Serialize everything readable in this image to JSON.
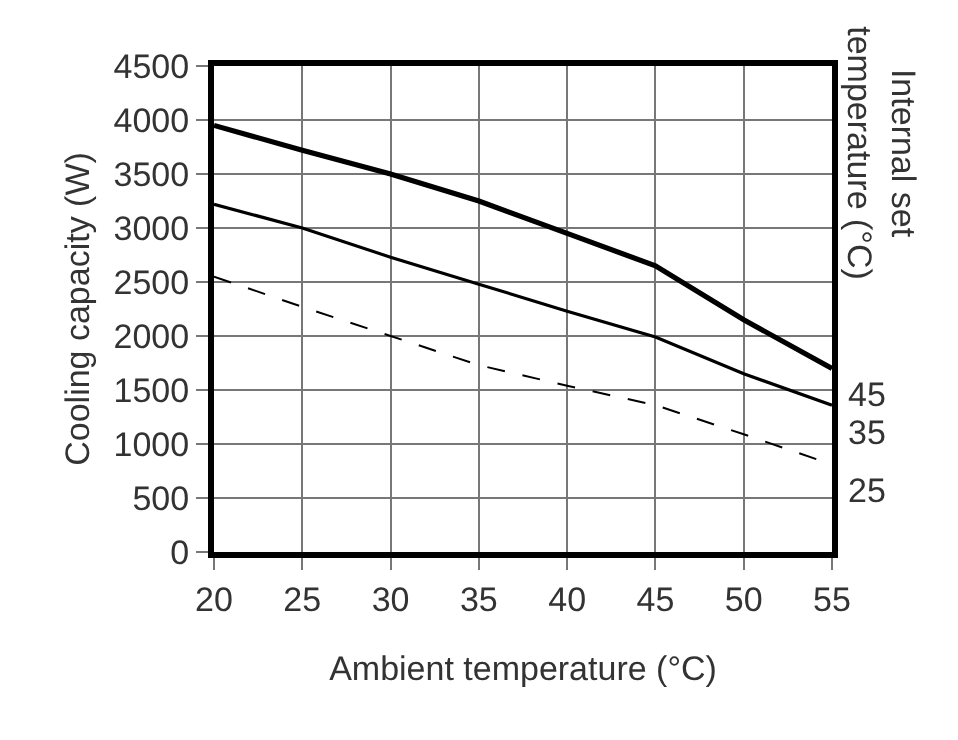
{
  "chart_data": {
    "type": "line",
    "xlabel": "Ambient temperature (°C)",
    "ylabel": "Cooling capacity (W)",
    "legend_title": "Internal set temperature (°C)",
    "x": [
      20,
      25,
      30,
      35,
      40,
      45,
      50,
      55
    ],
    "series": [
      {
        "name": "45",
        "color": "#000000",
        "line_style": "solid",
        "values": [
          3950,
          3720,
          3500,
          3250,
          2950,
          2650,
          2150,
          1700
        ]
      },
      {
        "name": "35",
        "color": "#000000",
        "line_style": "solid",
        "values": [
          3220,
          3000,
          2730,
          2480,
          2230,
          1990,
          1650,
          1360
        ]
      },
      {
        "name": "25",
        "color": "#000000",
        "line_style": "dashed",
        "values": [
          2550,
          2270,
          2000,
          1730,
          1540,
          1360,
          1090,
          810
        ]
      }
    ],
    "xlim": [
      20,
      55
    ],
    "xticks": [
      20,
      25,
      30,
      35,
      40,
      45,
      50,
      55
    ],
    "ylim": [
      0,
      4500
    ],
    "yticks": [
      0,
      500,
      1000,
      1500,
      2000,
      2500,
      3000,
      3500,
      4000,
      4500
    ],
    "grid": true,
    "marker": "none",
    "legend": "right"
  }
}
